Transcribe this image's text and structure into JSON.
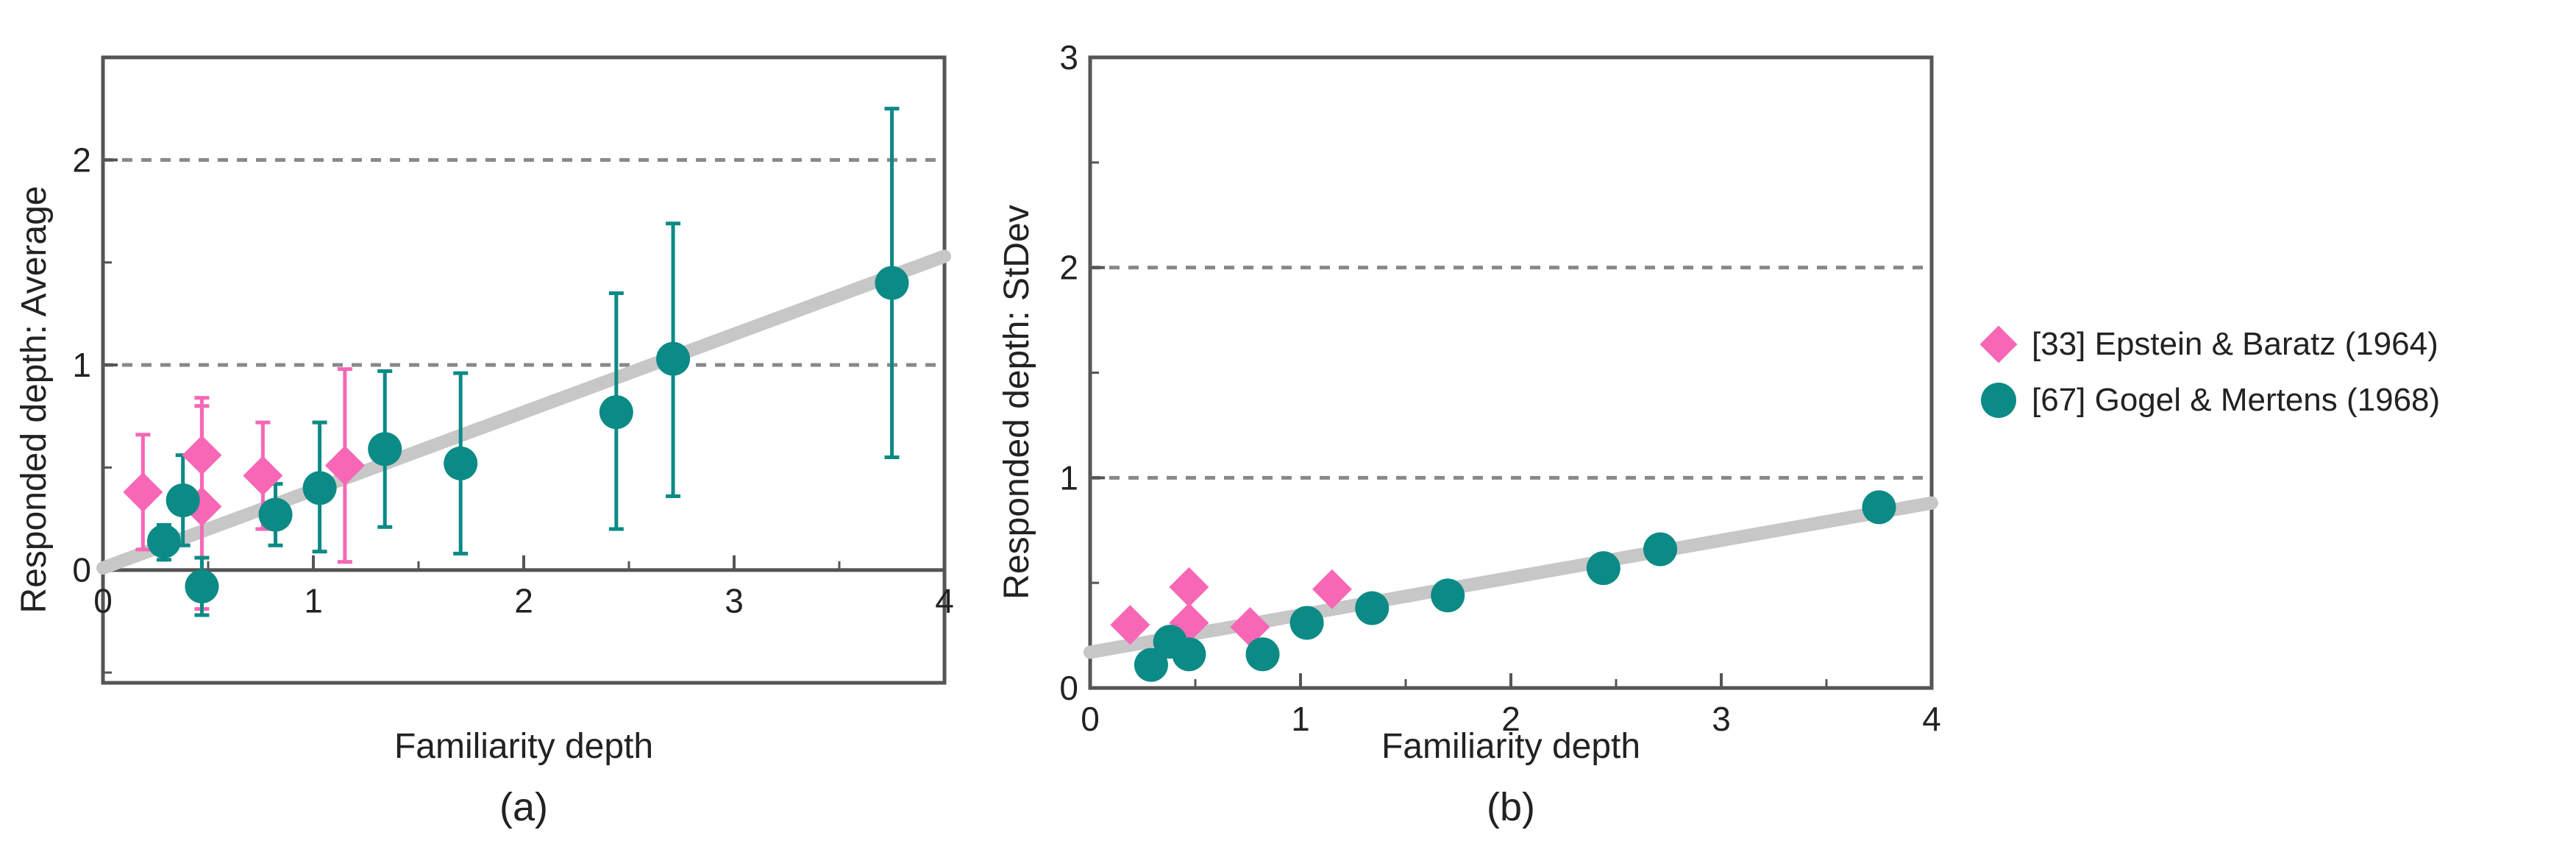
{
  "colors": {
    "epstein": "#f767b6",
    "gogel": "#0c8a86",
    "fit": "#c7c7c7",
    "grid": "#888888",
    "axis": "#555555"
  },
  "legend": {
    "items": [
      {
        "label": "[33] Epstein & Baratz (1964)",
        "marker": "diamond",
        "color": "#f767b6"
      },
      {
        "label": "[67] Gogel & Mertens (1968)",
        "marker": "circle",
        "color": "#0c8a86"
      }
    ]
  },
  "chart_data": [
    {
      "type": "scatter",
      "panel_label": "(a)",
      "xlabel": "Familiarity depth",
      "ylabel": "Responded depth: Average",
      "xlim": [
        0,
        4
      ],
      "ylim": [
        -0.55,
        2.5
      ],
      "x_ticks": [
        "0",
        "1",
        "2",
        "3",
        "4"
      ],
      "y_ticks": [
        "0",
        "1",
        "2"
      ],
      "grid_lines_y": [
        1,
        2
      ],
      "fit_line": {
        "x": [
          0,
          4
        ],
        "y": [
          0.01,
          1.53
        ]
      },
      "series": [
        {
          "name": "[33] Epstein & Baratz (1964)",
          "marker": "diamond",
          "points": [
            {
              "x": 0.19,
              "y": 0.38,
              "lo": 0.1,
              "hi": 0.66
            },
            {
              "x": 0.47,
              "y": 0.56,
              "lo": 0.27,
              "hi": 0.84
            },
            {
              "x": 0.47,
              "y": 0.31,
              "lo": -0.19,
              "hi": 0.8
            },
            {
              "x": 0.76,
              "y": 0.46,
              "lo": 0.2,
              "hi": 0.72
            },
            {
              "x": 1.15,
              "y": 0.51,
              "lo": 0.04,
              "hi": 0.98
            }
          ]
        },
        {
          "name": "[67] Gogel & Mertens (1968)",
          "marker": "circle",
          "points": [
            {
              "x": 0.29,
              "y": 0.14,
              "lo": 0.05,
              "hi": 0.22
            },
            {
              "x": 0.38,
              "y": 0.34,
              "lo": 0.12,
              "hi": 0.56
            },
            {
              "x": 0.47,
              "y": -0.08,
              "lo": -0.22,
              "hi": 0.06
            },
            {
              "x": 0.82,
              "y": 0.27,
              "lo": 0.12,
              "hi": 0.42
            },
            {
              "x": 1.03,
              "y": 0.4,
              "lo": 0.09,
              "hi": 0.72
            },
            {
              "x": 1.34,
              "y": 0.59,
              "lo": 0.21,
              "hi": 0.97
            },
            {
              "x": 1.7,
              "y": 0.52,
              "lo": 0.08,
              "hi": 0.96
            },
            {
              "x": 2.44,
              "y": 0.77,
              "lo": 0.2,
              "hi": 1.35
            },
            {
              "x": 2.71,
              "y": 1.03,
              "lo": 0.36,
              "hi": 1.69
            },
            {
              "x": 3.75,
              "y": 1.4,
              "lo": 0.55,
              "hi": 2.25
            }
          ]
        }
      ]
    },
    {
      "type": "scatter",
      "panel_label": "(b)",
      "xlabel": "Familiarity depth",
      "ylabel": "Responded depth: StDev",
      "xlim": [
        0,
        4
      ],
      "ylim": [
        0,
        3
      ],
      "x_ticks": [
        "0",
        "1",
        "2",
        "3",
        "4"
      ],
      "y_ticks": [
        "0",
        "1",
        "2",
        "3"
      ],
      "grid_lines_y": [
        1,
        2
      ],
      "fit_line": {
        "x": [
          0,
          4
        ],
        "y": [
          0.17,
          0.88
        ]
      },
      "series": [
        {
          "name": "[33] Epstein & Baratz (1964)",
          "marker": "diamond",
          "points": [
            {
              "x": 0.19,
              "y": 0.3
            },
            {
              "x": 0.47,
              "y": 0.48
            },
            {
              "x": 0.47,
              "y": 0.31
            },
            {
              "x": 0.76,
              "y": 0.29
            },
            {
              "x": 1.15,
              "y": 0.47
            }
          ]
        },
        {
          "name": "[67] Gogel & Mertens (1968)",
          "marker": "circle",
          "points": [
            {
              "x": 0.29,
              "y": 0.11
            },
            {
              "x": 0.38,
              "y": 0.22
            },
            {
              "x": 0.47,
              "y": 0.16
            },
            {
              "x": 0.82,
              "y": 0.16
            },
            {
              "x": 1.03,
              "y": 0.31
            },
            {
              "x": 1.34,
              "y": 0.38
            },
            {
              "x": 1.7,
              "y": 0.44
            },
            {
              "x": 2.44,
              "y": 0.57
            },
            {
              "x": 2.71,
              "y": 0.66
            },
            {
              "x": 3.75,
              "y": 0.86
            }
          ]
        }
      ]
    }
  ]
}
